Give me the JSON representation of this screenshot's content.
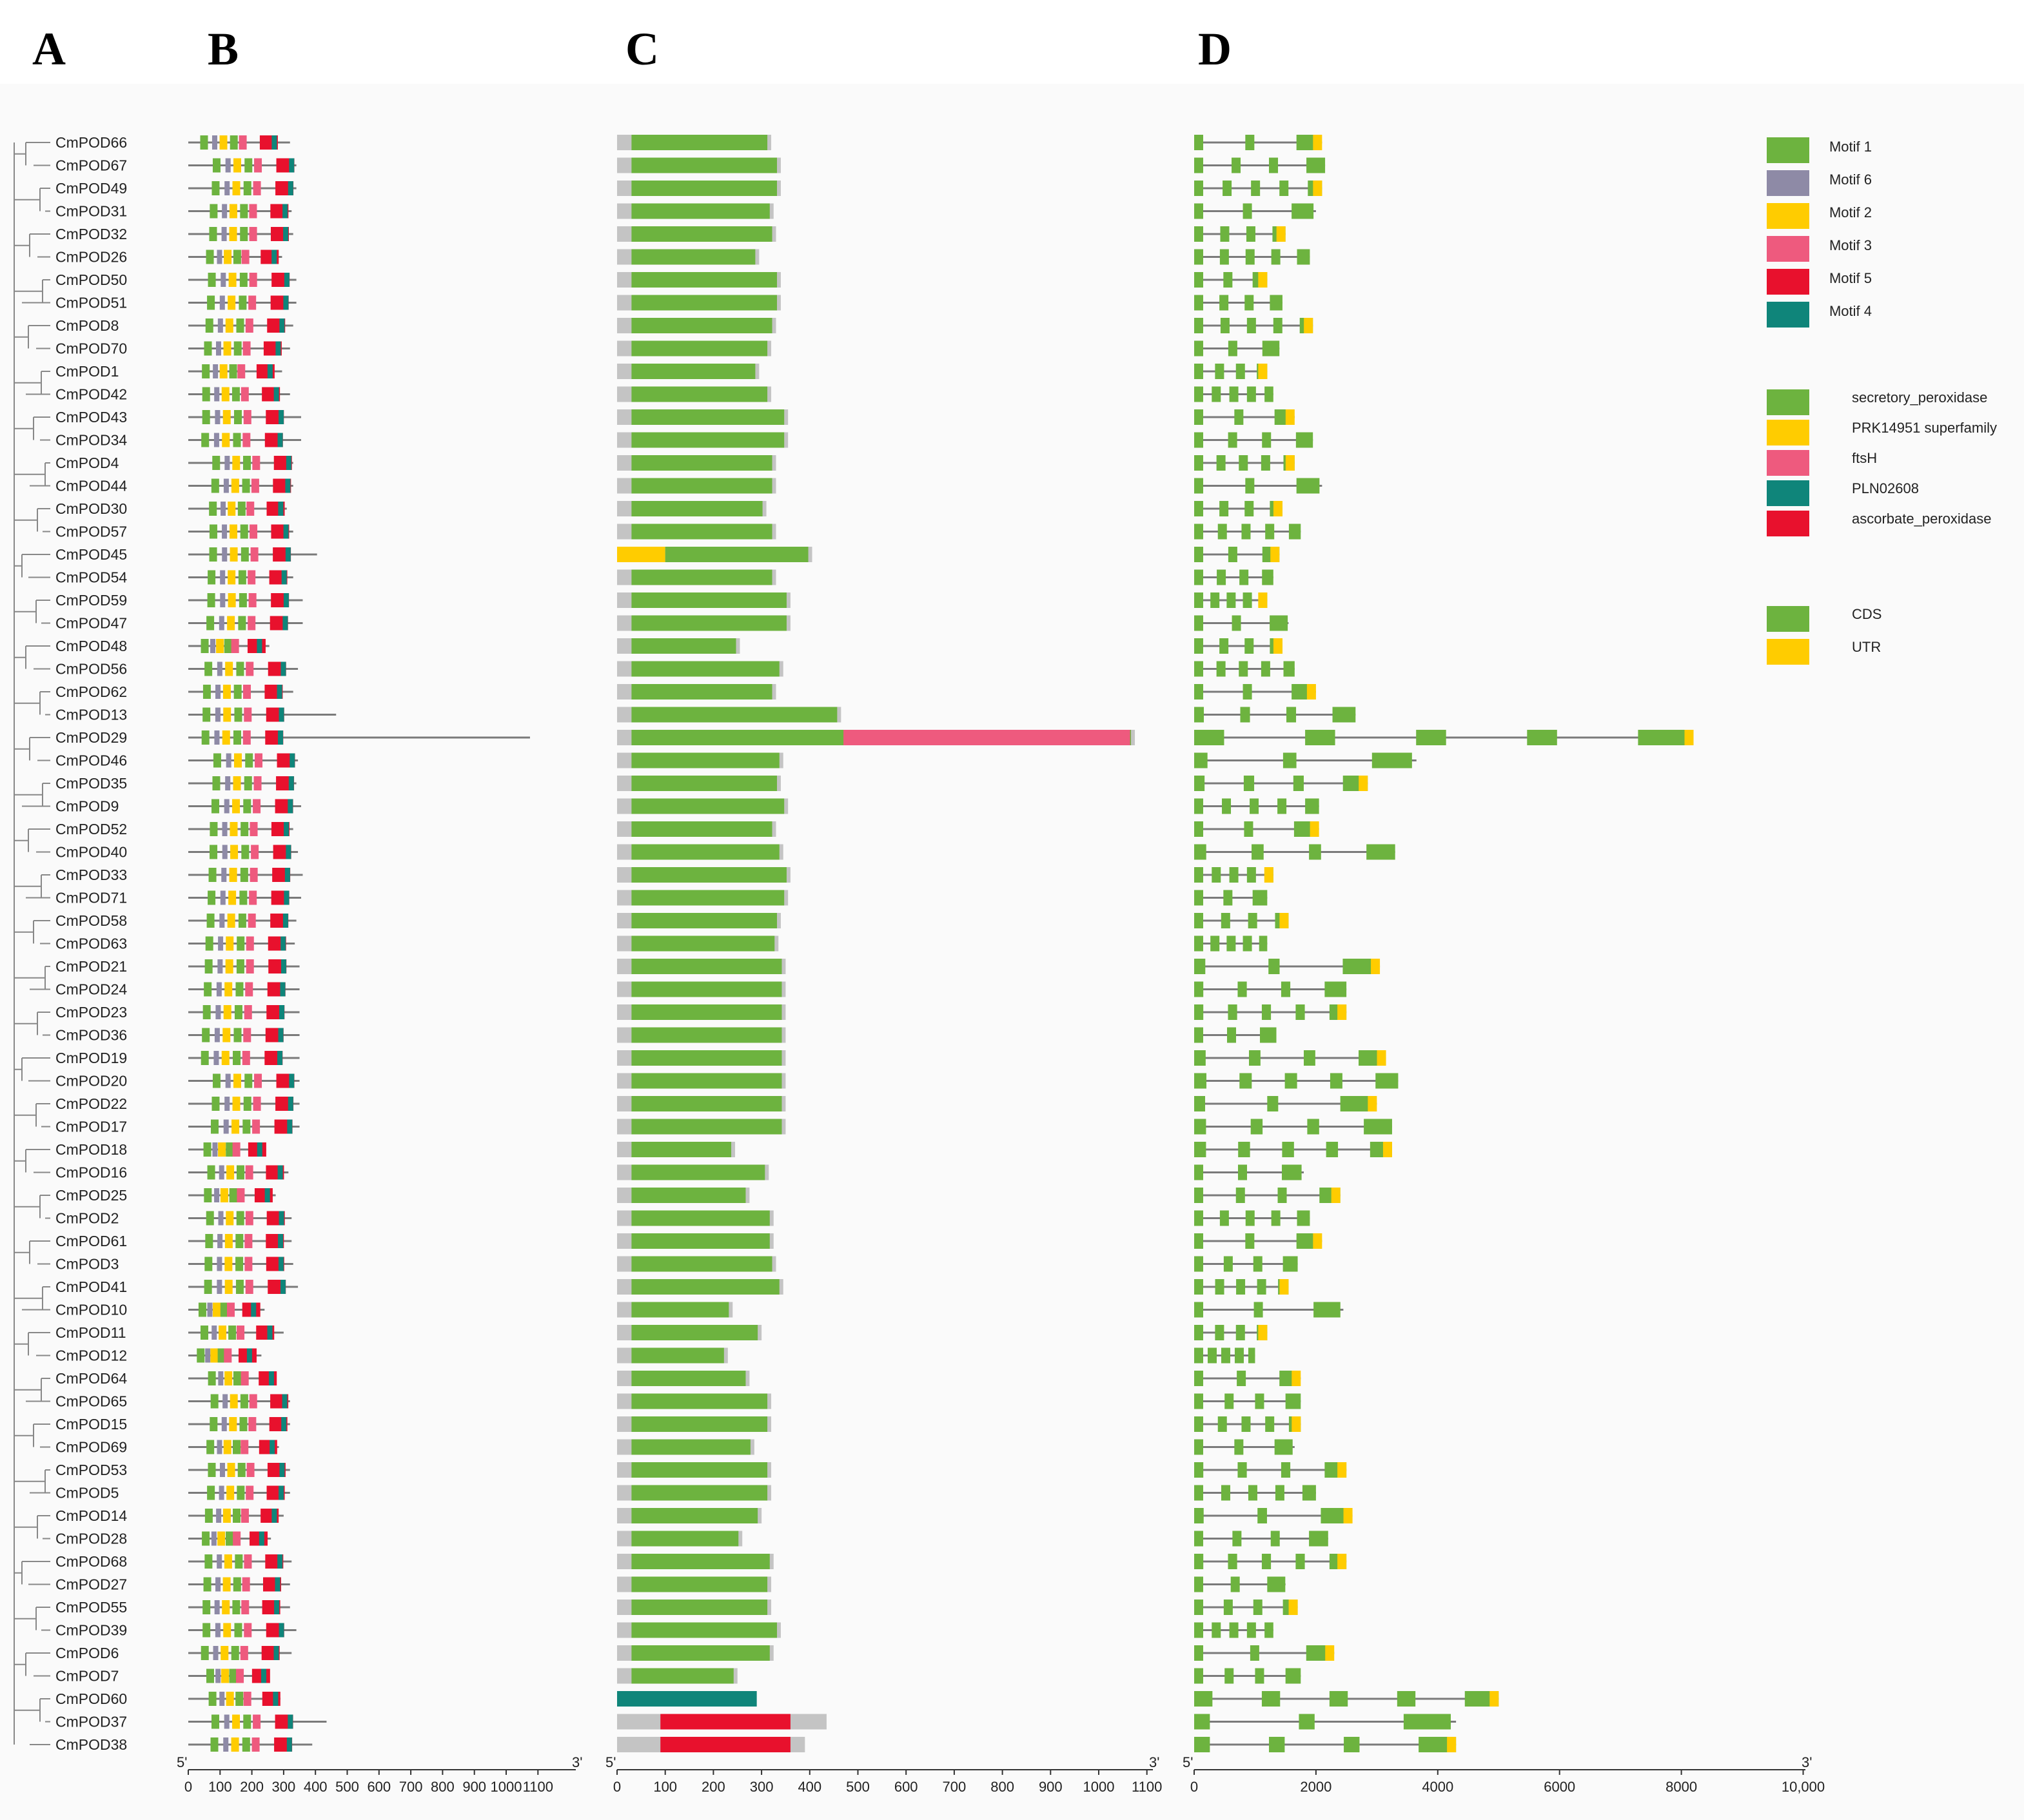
{
  "panel_labels": [
    "A",
    "B",
    "C",
    "D"
  ],
  "colors": {
    "motif1": "#6db33f",
    "motif6": "#8e8aa6",
    "motif2": "#ffcc00",
    "motif3": "#ee5a7e",
    "motif5": "#e8112d",
    "motif4": "#0f857a",
    "domain_gray": "#c4c4c4",
    "cds": "#6db33f",
    "utr": "#ffcc00",
    "line": "#7a7a7a"
  },
  "genes": [
    "CmPOD66",
    "CmPOD67",
    "CmPOD49",
    "CmPOD31",
    "CmPOD32",
    "CmPOD26",
    "CmPOD50",
    "CmPOD51",
    "CmPOD8",
    "CmPOD70",
    "CmPOD1",
    "CmPOD42",
    "CmPOD43",
    "CmPOD34",
    "CmPOD4",
    "CmPOD44",
    "CmPOD30",
    "CmPOD57",
    "CmPOD45",
    "CmPOD54",
    "CmPOD59",
    "CmPOD47",
    "CmPOD48",
    "CmPOD56",
    "CmPOD62",
    "CmPOD13",
    "CmPOD29",
    "CmPOD46",
    "CmPOD35",
    "CmPOD9",
    "CmPOD52",
    "CmPOD40",
    "CmPOD33",
    "CmPOD71",
    "CmPOD58",
    "CmPOD63",
    "CmPOD21",
    "CmPOD24",
    "CmPOD23",
    "CmPOD36",
    "CmPOD19",
    "CmPOD20",
    "CmPOD22",
    "CmPOD17",
    "CmPOD18",
    "CmPOD16",
    "CmPOD25",
    "CmPOD2",
    "CmPOD61",
    "CmPOD3",
    "CmPOD41",
    "CmPOD10",
    "CmPOD11",
    "CmPOD12",
    "CmPOD64",
    "CmPOD65",
    "CmPOD15",
    "CmPOD69",
    "CmPOD53",
    "CmPOD5",
    "CmPOD14",
    "CmPOD28",
    "CmPOD68",
    "CmPOD27",
    "CmPOD55",
    "CmPOD39",
    "CmPOD6",
    "CmPOD7",
    "CmPOD60",
    "CmPOD37",
    "CmPOD38"
  ],
  "protein_lengths": [
    320,
    340,
    340,
    325,
    330,
    295,
    340,
    340,
    330,
    320,
    295,
    320,
    355,
    355,
    330,
    330,
    310,
    330,
    405,
    330,
    360,
    360,
    255,
    345,
    330,
    465,
    1075,
    345,
    340,
    355,
    330,
    345,
    360,
    355,
    340,
    335,
    350,
    350,
    350,
    350,
    350,
    350,
    350,
    350,
    245,
    315,
    275,
    325,
    325,
    330,
    345,
    240,
    300,
    230,
    275,
    320,
    320,
    285,
    320,
    320,
    300,
    260,
    325,
    320,
    320,
    340,
    325,
    250,
    290,
    435,
    390
  ],
  "motif_legend": [
    "Motif 1",
    "Motif 6",
    "Motif 2",
    "Motif 3",
    "Motif 5",
    "Motif 4"
  ],
  "domain_legend": [
    "secretory_peroxidase",
    "PRK14951 superfamily",
    "ftsH",
    "PLN02608",
    "ascorbate_peroxidase"
  ],
  "structure_legend": [
    "CDS",
    "UTR"
  ],
  "axis_b": {
    "start_label": "5'",
    "end_label": "3'",
    "ticks": [
      "0",
      "100",
      "200",
      "300",
      "400",
      "500",
      "600",
      "700",
      "800",
      "900",
      "1000",
      "1100"
    ]
  },
  "axis_c": {
    "start_label": "5'",
    "end_label": "3'",
    "ticks": [
      "0",
      "100",
      "200",
      "300",
      "400",
      "500",
      "600",
      "700",
      "800",
      "900",
      "1000",
      "1100"
    ]
  },
  "axis_d": {
    "start_label": "5'",
    "end_label": "3'",
    "ticks": [
      "0",
      "2000",
      "4000",
      "6000",
      "8000",
      "10,000"
    ]
  },
  "gene_lengths_bp": [
    2100,
    2150,
    2100,
    2000,
    1500,
    1900,
    1200,
    1450,
    1950,
    1400,
    1200,
    1300,
    1650,
    1950,
    1650,
    2100,
    1450,
    1750,
    1400,
    1300,
    1200,
    1550,
    1450,
    1650,
    2000,
    2650,
    8200,
    3650,
    2850,
    2050,
    2050,
    3300,
    1300,
    1200,
    1550,
    1200,
    3050,
    2500,
    2500,
    1350,
    3150,
    3350,
    3000,
    3250,
    3250,
    1800,
    2400,
    1900,
    2100,
    1700,
    1550,
    2450,
    1200,
    1000,
    1750,
    1750,
    1750,
    1650,
    2500,
    2000,
    2600,
    2200,
    2500,
    1500,
    1700,
    1300,
    2300,
    1750,
    5000,
    4300,
    4300
  ]
}
